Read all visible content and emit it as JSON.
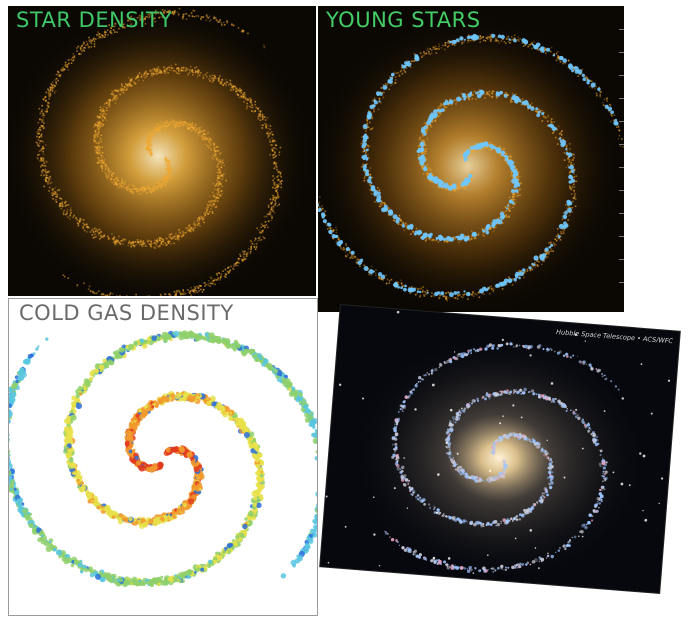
{
  "panels": {
    "star_density": {
      "label": "STAR DENSITY",
      "label_color": "#3fc768",
      "glow_color": "#f0a830"
    },
    "young_stars": {
      "label": "YOUNG STARS",
      "label_color": "#44cc66",
      "star_color": "#6fc6ff"
    },
    "cold_gas": {
      "label": "COLD GAS DENSITY",
      "label_color": "#6a6a6a",
      "palette": [
        "#2a6fdc",
        "#58c5e0",
        "#8fd06a",
        "#e8e14a",
        "#f19a2e",
        "#e23a1e"
      ]
    },
    "hubble": {
      "credit": "Hubble Space Telescope • ACS/WFC",
      "core_color": "#fff2d8",
      "arm_color": "#9cc4ff"
    }
  }
}
